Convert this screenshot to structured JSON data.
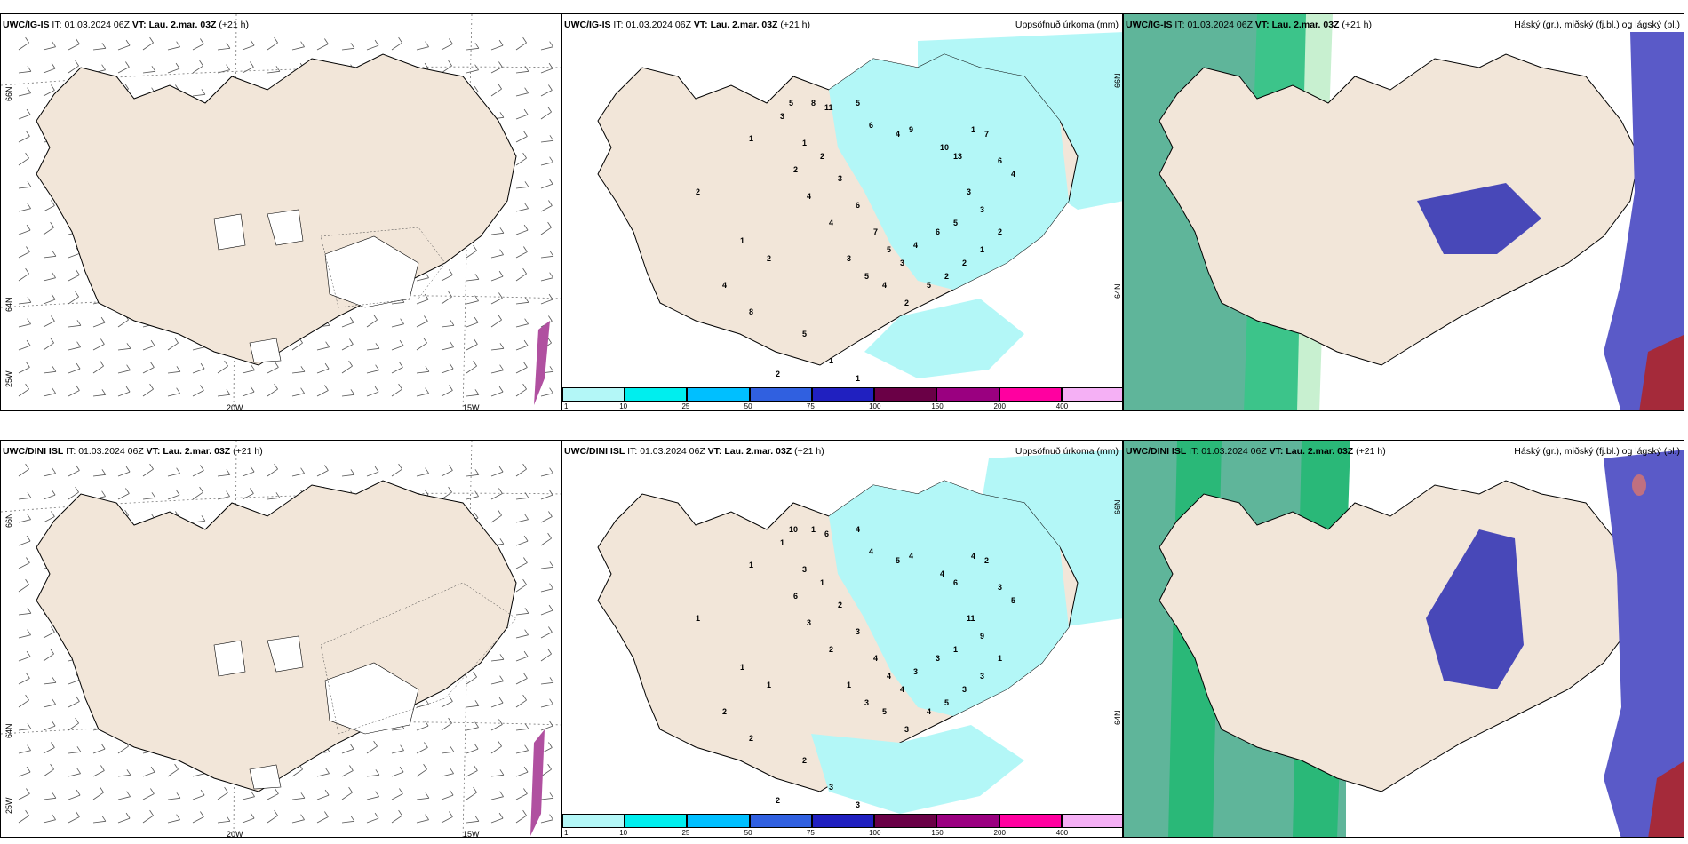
{
  "colors": {
    "land": "#f2e6d9",
    "precip_light": "#b3f7f7",
    "cloud_high": "#3cb48c",
    "cloud_mid": "#2ab878",
    "cloud_low": "#5a5ac8",
    "cloud_low_dark": "#3a3aa0",
    "cloud_red": "#a52a3a"
  },
  "colorbar": {
    "ticks": [
      "1",
      "10",
      "25",
      "50",
      "75",
      "100",
      "150",
      "200",
      "400"
    ],
    "colors": [
      "#b3f7f7",
      "#00eeee",
      "#00bfff",
      "#3060e0",
      "#2020c0",
      "#6a0046",
      "#9a0080",
      "#ff00a0",
      "#f5b0f5"
    ]
  },
  "rows": [
    {
      "model": "UWC/IG-IS",
      "it_label": "IT:",
      "it_value": "01.03.2024 06Z",
      "vt_label": "VT:",
      "vt_value": "Lau. 2.mar. 03Z",
      "lead": "(+21 h)",
      "precip_title": "Uppsöfnuð úrkoma (mm)",
      "cloud_title": "Háský (gr.), miðský (fj.bl.) og lágský (bl.)",
      "wind_lon_labels": [
        "20W",
        "15W"
      ],
      "wind_lat_labels": [
        "66N",
        "64N",
        "25W"
      ],
      "precip_lat_labels": [
        "66N",
        "64N"
      ],
      "precip_numbers": [
        {
          "v": "2"
        },
        {
          "v": "1"
        },
        {
          "v": "3"
        },
        {
          "v": "5"
        },
        {
          "v": "8"
        },
        {
          "v": "11"
        },
        {
          "v": "5"
        },
        {
          "v": "6"
        },
        {
          "v": "4"
        },
        {
          "v": "9"
        },
        {
          "v": "10"
        },
        {
          "v": "13"
        },
        {
          "v": "1"
        },
        {
          "v": "7"
        },
        {
          "v": "6"
        },
        {
          "v": "4"
        },
        {
          "v": "3"
        },
        {
          "v": "3"
        },
        {
          "v": "5"
        },
        {
          "v": "6"
        },
        {
          "v": "4"
        },
        {
          "v": "3"
        },
        {
          "v": "5"
        },
        {
          "v": "7"
        },
        {
          "v": "6"
        },
        {
          "v": "3"
        },
        {
          "v": "2"
        },
        {
          "v": "1"
        },
        {
          "v": "2"
        },
        {
          "v": "4"
        },
        {
          "v": "4"
        },
        {
          "v": "3"
        },
        {
          "v": "5"
        },
        {
          "v": "4"
        },
        {
          "v": "2"
        },
        {
          "v": "5"
        },
        {
          "v": "2"
        },
        {
          "v": "2"
        },
        {
          "v": "1"
        },
        {
          "v": "2"
        },
        {
          "v": "1"
        },
        {
          "v": "2"
        },
        {
          "v": "4"
        },
        {
          "v": "8"
        },
        {
          "v": "5"
        },
        {
          "v": "1"
        },
        {
          "v": "1"
        },
        {
          "v": "2"
        }
      ]
    },
    {
      "model": "UWC/DINI ISL",
      "it_label": "IT:",
      "it_value": "01.03.2024 06Z",
      "vt_label": "VT:",
      "vt_value": "Lau. 2.mar. 03Z",
      "lead": "(+21 h)",
      "precip_title": "Uppsöfnuð úrkoma (mm)",
      "cloud_title": "Háský (gr.), miðský (fj.bl.) og lágský (bl.)",
      "wind_lon_labels": [
        "20W",
        "15W"
      ],
      "wind_lat_labels": [
        "66N",
        "64N",
        "25W"
      ],
      "precip_lat_labels": [
        "66N",
        "64N"
      ],
      "precip_numbers": [
        {
          "v": "1"
        },
        {
          "v": "1"
        },
        {
          "v": "1"
        },
        {
          "v": "10"
        },
        {
          "v": "1"
        },
        {
          "v": "6"
        },
        {
          "v": "4"
        },
        {
          "v": "4"
        },
        {
          "v": "5"
        },
        {
          "v": "4"
        },
        {
          "v": "4"
        },
        {
          "v": "6"
        },
        {
          "v": "4"
        },
        {
          "v": "2"
        },
        {
          "v": "3"
        },
        {
          "v": "5"
        },
        {
          "v": "11"
        },
        {
          "v": "9"
        },
        {
          "v": "1"
        },
        {
          "v": "3"
        },
        {
          "v": "3"
        },
        {
          "v": "4"
        },
        {
          "v": "4"
        },
        {
          "v": "4"
        },
        {
          "v": "3"
        },
        {
          "v": "2"
        },
        {
          "v": "1"
        },
        {
          "v": "3"
        },
        {
          "v": "6"
        },
        {
          "v": "3"
        },
        {
          "v": "2"
        },
        {
          "v": "1"
        },
        {
          "v": "3"
        },
        {
          "v": "5"
        },
        {
          "v": "3"
        },
        {
          "v": "4"
        },
        {
          "v": "5"
        },
        {
          "v": "3"
        },
        {
          "v": "3"
        },
        {
          "v": "1"
        },
        {
          "v": "1"
        },
        {
          "v": "1"
        },
        {
          "v": "2"
        },
        {
          "v": "2"
        },
        {
          "v": "2"
        },
        {
          "v": "3"
        },
        {
          "v": "3"
        },
        {
          "v": "2"
        },
        {
          "v": "2"
        }
      ]
    }
  ]
}
